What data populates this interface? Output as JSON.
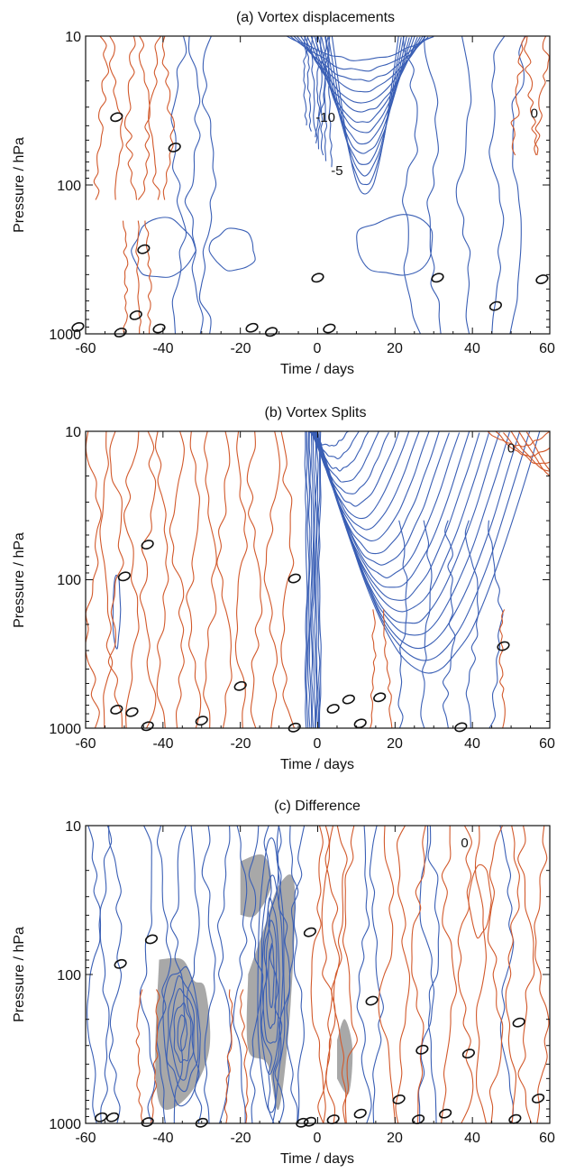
{
  "colors": {
    "negative": "#3a5fb5",
    "positive": "#d2592b",
    "significance": "#a8a8a8",
    "zero": "#111111"
  },
  "chart_data": [
    {
      "type": "contour",
      "title": "(a) Vortex displacements",
      "xlabel": "Time / days",
      "ylabel": "Pressure / hPa",
      "xlim": [
        -60,
        60
      ],
      "ylim": [
        1000,
        10
      ],
      "yscale": "log",
      "xticks": [
        "-60",
        "-40",
        "-20",
        "0",
        "20",
        "40",
        "60"
      ],
      "yticks": [
        "10",
        "100",
        "1000"
      ],
      "contour_labels": [
        {
          "text": "-10",
          "x": 2,
          "p": 35
        },
        {
          "text": "-5",
          "x": 5,
          "p": 80
        },
        {
          "text": "0",
          "x": 56,
          "p": 33
        }
      ],
      "zero_markers": [
        {
          "x": -52,
          "p": 35
        },
        {
          "x": -37,
          "p": 56
        },
        {
          "x": -45,
          "p": 270
        },
        {
          "x": 0,
          "p": 420
        },
        {
          "x": -47,
          "p": 750
        },
        {
          "x": -51,
          "p": 980
        },
        {
          "x": -41,
          "p": 920
        },
        {
          "x": -17,
          "p": 910
        },
        {
          "x": -12,
          "p": 970
        },
        {
          "x": 3,
          "p": 920
        },
        {
          "x": 31,
          "p": 420
        },
        {
          "x": 46,
          "p": 650
        },
        {
          "x": 58,
          "p": 430
        },
        {
          "x": -62,
          "p": 900
        }
      ],
      "significance_shading": false
    },
    {
      "type": "contour",
      "title": "(b) Vortex Splits",
      "xlabel": "Time / days",
      "ylabel": "Pressure / hPa",
      "xlim": [
        -60,
        60
      ],
      "ylim": [
        1000,
        10
      ],
      "yscale": "log",
      "xticks": [
        "-60",
        "-40",
        "-20",
        "0",
        "20",
        "40",
        "60"
      ],
      "yticks": [
        "10",
        "100",
        "1000"
      ],
      "contour_labels": [
        {
          "text": "0",
          "x": 50,
          "p": 13
        }
      ],
      "zero_markers": [
        {
          "x": -44,
          "p": 58
        },
        {
          "x": -50,
          "p": 95
        },
        {
          "x": -6,
          "p": 98
        },
        {
          "x": 48,
          "p": 280
        },
        {
          "x": -20,
          "p": 520
        },
        {
          "x": -52,
          "p": 750
        },
        {
          "x": -48,
          "p": 780
        },
        {
          "x": -44,
          "p": 970
        },
        {
          "x": -30,
          "p": 890
        },
        {
          "x": -6,
          "p": 990
        },
        {
          "x": 4,
          "p": 740
        },
        {
          "x": 8,
          "p": 640
        },
        {
          "x": 11,
          "p": 930
        },
        {
          "x": 16,
          "p": 620
        },
        {
          "x": 37,
          "p": 985
        }
      ],
      "significance_shading": false
    },
    {
      "type": "contour",
      "title": "(c) Difference",
      "xlabel": "Time / days",
      "ylabel": "Pressure / hPa",
      "xlim": [
        -60,
        60
      ],
      "ylim": [
        1000,
        10
      ],
      "yscale": "log",
      "xticks": [
        "-60",
        "-40",
        "-20",
        "0",
        "20",
        "40",
        "60"
      ],
      "yticks": [
        "10",
        "100",
        "1000"
      ],
      "contour_labels": [
        {
          "text": "0",
          "x": 38,
          "p": 13
        }
      ],
      "zero_markers": [
        {
          "x": -43,
          "p": 58
        },
        {
          "x": -51,
          "p": 85
        },
        {
          "x": -2,
          "p": 52
        },
        {
          "x": 14,
          "p": 150
        },
        {
          "x": 52,
          "p": 210
        },
        {
          "x": 27,
          "p": 320
        },
        {
          "x": 39,
          "p": 340
        },
        {
          "x": -56,
          "p": 910
        },
        {
          "x": -53,
          "p": 910
        },
        {
          "x": -44,
          "p": 980
        },
        {
          "x": -30,
          "p": 990
        },
        {
          "x": -4,
          "p": 990
        },
        {
          "x": -2,
          "p": 975
        },
        {
          "x": 4,
          "p": 940
        },
        {
          "x": 11,
          "p": 860
        },
        {
          "x": 21,
          "p": 690
        },
        {
          "x": 26,
          "p": 940
        },
        {
          "x": 33,
          "p": 860
        },
        {
          "x": 51,
          "p": 935
        },
        {
          "x": 57,
          "p": 680
        }
      ],
      "significance_shading": true
    }
  ]
}
